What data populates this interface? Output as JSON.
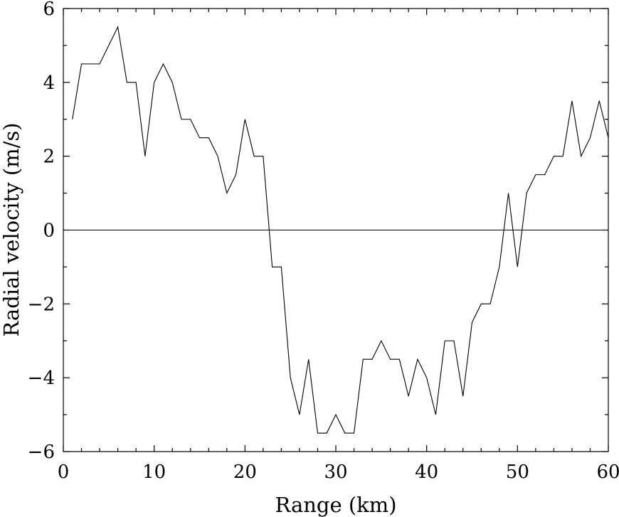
{
  "chart_data": {
    "type": "line",
    "xlabel": "Range (km)",
    "ylabel": "Radial velocity (m/s)",
    "xlim": [
      0,
      60
    ],
    "ylim": [
      -6,
      6
    ],
    "xticks": [
      0,
      10,
      20,
      30,
      40,
      50,
      60
    ],
    "xtick_labels": [
      "0",
      "10",
      "20",
      "30",
      "40",
      "50",
      "60"
    ],
    "yticks": [
      -6,
      -4,
      -2,
      0,
      2,
      4,
      6
    ],
    "ytick_labels": [
      "−6",
      "−4",
      "−2",
      "0",
      "2",
      "4",
      "6"
    ],
    "grid": false,
    "zero_line": true,
    "series": [
      {
        "x": [
          1,
          2,
          3,
          4,
          5,
          6,
          7,
          8,
          9,
          10,
          11,
          12,
          13,
          14,
          15,
          16,
          17,
          18,
          19,
          20,
          21,
          22,
          23,
          24,
          25,
          26,
          27,
          28,
          29,
          30,
          31,
          32,
          33,
          34,
          35,
          36,
          37,
          38,
          39,
          40,
          41,
          42,
          43,
          44,
          45,
          46,
          47,
          48,
          49,
          50,
          51,
          52,
          53,
          54,
          55,
          56,
          57,
          58,
          59,
          60
        ],
        "values": [
          3,
          4.5,
          4.5,
          4.5,
          5,
          5.5,
          4,
          4,
          2,
          4,
          4.5,
          4,
          3,
          3,
          2.5,
          2.5,
          2,
          1,
          1.5,
          3,
          2,
          2,
          -1,
          -1,
          -4,
          -5,
          -3.5,
          -5.5,
          -5.5,
          -5,
          -5.5,
          -5.5,
          -3.5,
          -3.5,
          -3,
          -3.5,
          -3.5,
          -4.5,
          -3.5,
          -4,
          -5,
          -3,
          -3,
          -4.5,
          -2.5,
          -2,
          -2,
          -1,
          1,
          -1,
          1,
          1.5,
          1.5,
          2,
          2,
          3.5,
          2,
          2.5,
          3.5,
          2.5
        ]
      }
    ]
  }
}
